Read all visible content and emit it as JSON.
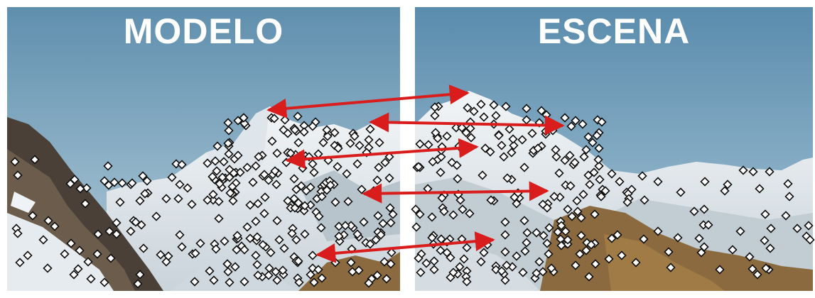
{
  "panels": {
    "left": {
      "title": "MODELO"
    },
    "right": {
      "title": "ESCENA"
    }
  },
  "colors": {
    "sky_top": "#5f8fae",
    "sky_bottom": "#a9c6d6",
    "snow": "#e9eef2",
    "rock_dark": "#4a4038",
    "rock_brown": "#8a6a3e",
    "keypoint_fill": "#ffffff",
    "keypoint_stroke": "#111111",
    "match_arrow": "#d91c1c",
    "divider": "#ffffff"
  },
  "content": {
    "keypoint_icon": "diamond-keypoint-icon",
    "match_count": 5
  }
}
